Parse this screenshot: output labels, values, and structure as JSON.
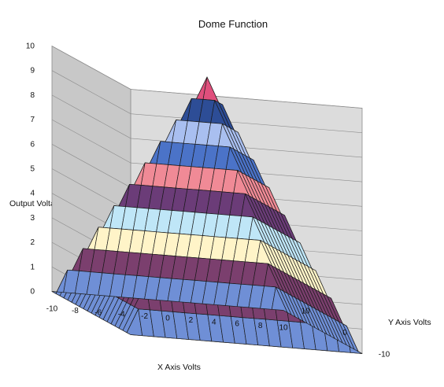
{
  "chart_data": {
    "type": "surface",
    "title": "Dome Function",
    "xlabel": "X Axis Volts",
    "ylabel": "Y Axis Volts",
    "zlabel": "Output Voltage",
    "xlim": [
      -10,
      10
    ],
    "ylim": [
      -10,
      10
    ],
    "zlim": [
      0,
      10
    ],
    "x_ticks": [
      -10,
      -8,
      -6,
      -4,
      -2,
      0,
      2,
      4,
      6,
      8,
      10
    ],
    "y_ticks": [
      -10,
      0,
      10
    ],
    "z_ticks": [
      0,
      1,
      2,
      3,
      4,
      5,
      6,
      7,
      8,
      9,
      10
    ],
    "grid": true,
    "function": "z = 10 - max(|x|, |y|)",
    "x": [
      -10,
      -8,
      -6,
      -4,
      -2,
      0,
      2,
      4,
      6,
      8,
      10
    ],
    "y": [
      -10,
      -8,
      -6,
      -4,
      -2,
      0,
      2,
      4,
      6,
      8,
      10
    ],
    "z": [
      [
        0,
        0,
        0,
        0,
        0,
        0,
        0,
        0,
        0,
        0,
        0
      ],
      [
        0,
        2,
        2,
        2,
        2,
        2,
        2,
        2,
        2,
        2,
        0
      ],
      [
        0,
        2,
        4,
        4,
        4,
        4,
        4,
        4,
        4,
        2,
        0
      ],
      [
        0,
        2,
        4,
        6,
        6,
        6,
        6,
        6,
        4,
        2,
        0
      ],
      [
        0,
        2,
        4,
        6,
        8,
        8,
        8,
        6,
        4,
        2,
        0
      ],
      [
        0,
        2,
        4,
        6,
        8,
        10,
        8,
        6,
        4,
        2,
        0
      ],
      [
        0,
        2,
        4,
        6,
        8,
        8,
        8,
        6,
        4,
        2,
        0
      ],
      [
        0,
        2,
        4,
        6,
        6,
        6,
        6,
        6,
        4,
        2,
        0
      ],
      [
        0,
        2,
        4,
        4,
        4,
        4,
        4,
        4,
        4,
        2,
        0
      ],
      [
        0,
        2,
        2,
        2,
        2,
        2,
        2,
        2,
        2,
        2,
        0
      ],
      [
        0,
        0,
        0,
        0,
        0,
        0,
        0,
        0,
        0,
        0,
        0
      ]
    ],
    "band_colors": [
      "#6f8fd6",
      "#7b3f6e",
      "#fff4c8",
      "#bfe6f7",
      "#6b3c78",
      "#f08a96",
      "#4b73c8",
      "#a9bff0",
      "#2d4d96",
      "#e04f7c"
    ],
    "colors": {
      "back_wall": "#dcdcdc",
      "side_wall": "#c8c8c8",
      "floor": "#bdbdbd",
      "gridline": "#8c8c8c",
      "edge": "#1a1a1a"
    }
  }
}
